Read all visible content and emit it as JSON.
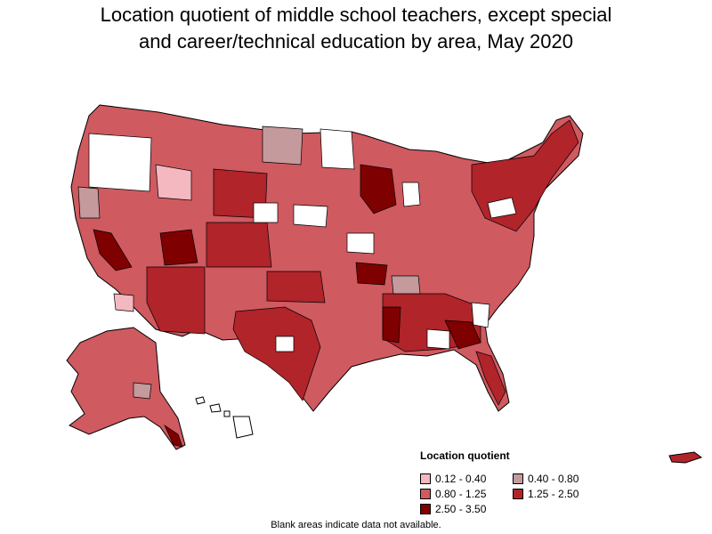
{
  "title_line1": "Location quotient of middle school teachers, except special",
  "title_line2": "and career/technical education by area, May 2020",
  "legend": {
    "title": "Location quotient",
    "items": [
      {
        "label": "0.12 - 0.40",
        "color": "#f4b8c0"
      },
      {
        "label": "0.40 - 0.80",
        "color": "#c49a9c"
      },
      {
        "label": "0.80 - 1.25",
        "color": "#cf5a60"
      },
      {
        "label": "1.25 - 2.50",
        "color": "#b0242a"
      },
      {
        "label": "2.50 - 3.50",
        "color": "#7f0000"
      }
    ]
  },
  "footnote": "Blank areas indicate data not available.",
  "colors": {
    "blank": "#ffffff",
    "border": "#000000"
  }
}
